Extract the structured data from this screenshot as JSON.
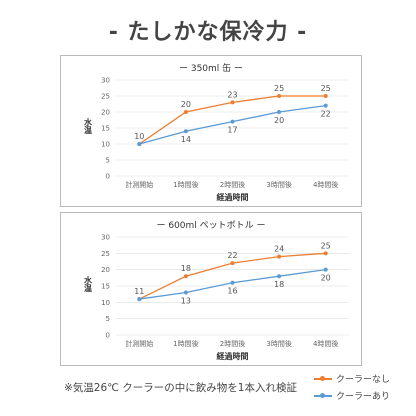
{
  "page": {
    "title": "- たしかな保冷力 -",
    "note": "※気温26℃ クーラーの中に飲み物を1本入れ検証"
  },
  "legend": {
    "items": [
      {
        "label": "クーラーなし",
        "color": "#ED7D31"
      },
      {
        "label": "クーラーあり",
        "color": "#5B9BD5"
      }
    ]
  },
  "chart_data": [
    {
      "type": "line",
      "title": "ー 350ml 缶 ー",
      "xlabel": "経過時間",
      "ylabel": "水温",
      "categories": [
        "計測開始",
        "1時間後",
        "2時間後",
        "3時間後",
        "4時間後"
      ],
      "ylim": [
        0,
        30
      ],
      "yticks": [
        0,
        5,
        10,
        15,
        20,
        25,
        30
      ],
      "grid": true,
      "series": [
        {
          "name": "クーラーなし",
          "color": "#ED7D31",
          "values": [
            10,
            20,
            23,
            25,
            25
          ]
        },
        {
          "name": "クーラーあり",
          "color": "#5B9BD5",
          "values": [
            10,
            14,
            17,
            20,
            22
          ]
        }
      ]
    },
    {
      "type": "line",
      "title": "ー 600ml ペットボトル ー",
      "xlabel": "経過時間",
      "ylabel": "水温",
      "categories": [
        "計測開始",
        "1時間後",
        "2時間後",
        "3時間後",
        "4時間後"
      ],
      "ylim": [
        0,
        30
      ],
      "yticks": [
        0,
        5,
        10,
        15,
        20,
        25,
        30
      ],
      "grid": true,
      "series": [
        {
          "name": "クーラーなし",
          "color": "#ED7D31",
          "values": [
            11,
            18,
            22,
            24,
            25
          ]
        },
        {
          "name": "クーラーあり",
          "color": "#5B9BD5",
          "values": [
            11,
            13,
            16,
            18,
            20
          ]
        }
      ]
    }
  ]
}
